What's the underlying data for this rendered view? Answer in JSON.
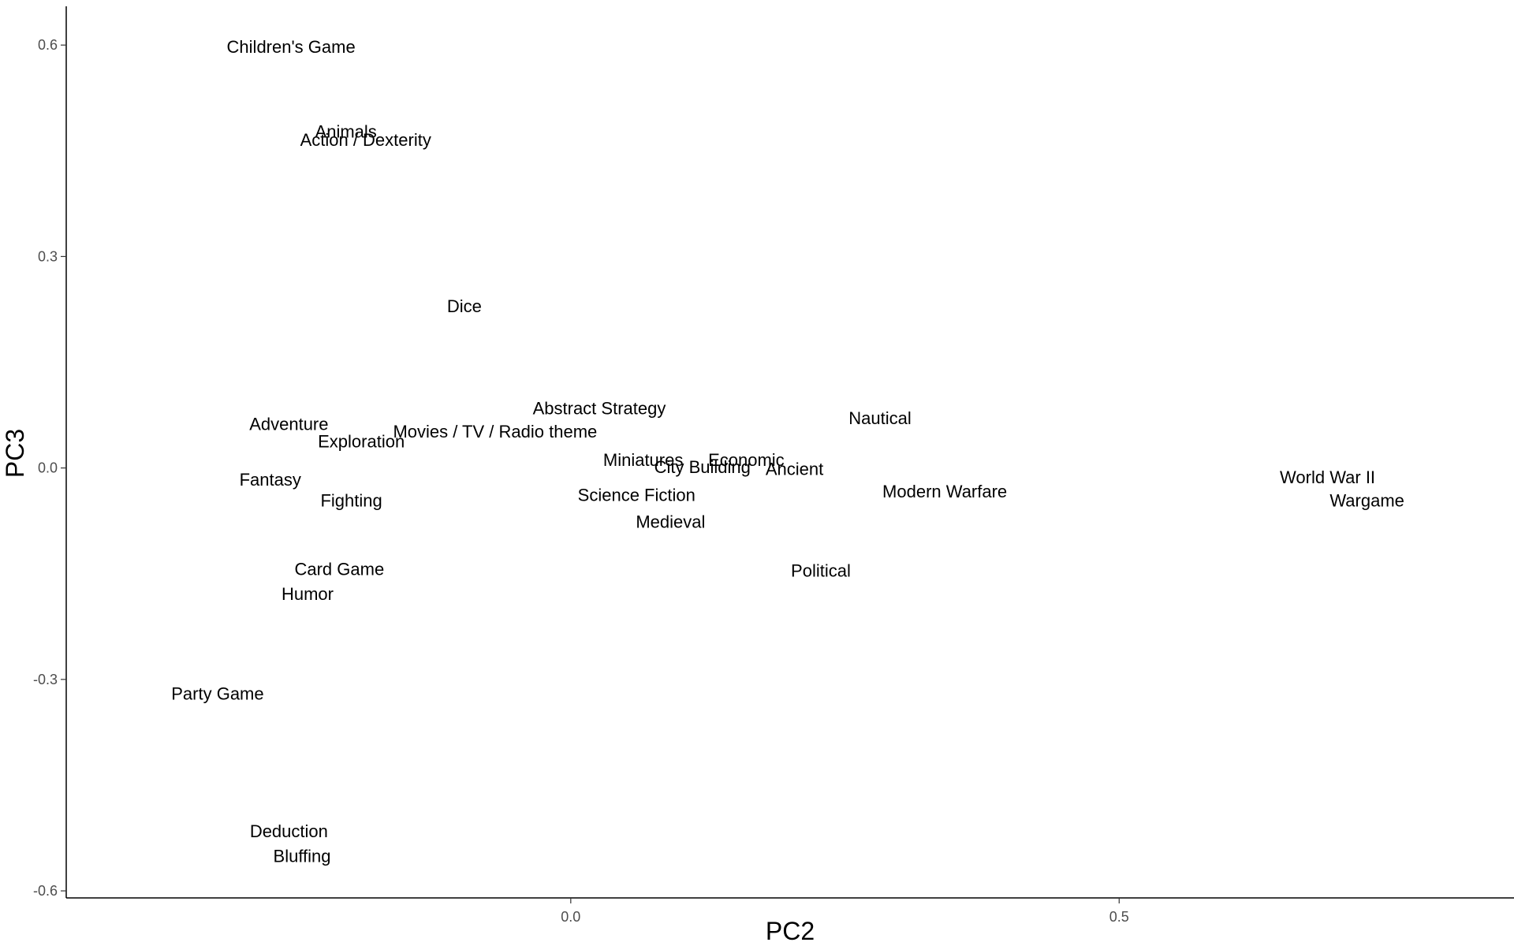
{
  "chart_data": {
    "type": "scatter",
    "xlabel": "PC2",
    "ylabel": "PC3",
    "xlim": [
      -0.46,
      0.86
    ],
    "ylim": [
      -0.61,
      0.655
    ],
    "xticks": [
      0.0,
      0.5
    ],
    "xtick_labels": [
      "0.0",
      "0.5"
    ],
    "yticks": [
      -0.6,
      -0.3,
      0.0,
      0.3,
      0.6
    ],
    "ytick_labels": [
      "-0.6",
      "-0.3",
      "0.0",
      "0.3",
      "0.6"
    ],
    "grid": false,
    "marker": "text-label",
    "points": [
      {
        "label": "Children's Game",
        "x": -0.255,
        "y": 0.598
      },
      {
        "label": "Animals",
        "x": -0.205,
        "y": 0.478
      },
      {
        "label": "Action / Dexterity",
        "x": -0.187,
        "y": 0.466
      },
      {
        "label": "Dice",
        "x": -0.097,
        "y": 0.23
      },
      {
        "label": "Abstract Strategy",
        "x": 0.026,
        "y": 0.085
      },
      {
        "label": "Nautical",
        "x": 0.282,
        "y": 0.071
      },
      {
        "label": "Adventure",
        "x": -0.257,
        "y": 0.063
      },
      {
        "label": "Movies / TV / Radio theme",
        "x": -0.069,
        "y": 0.052
      },
      {
        "label": "Exploration",
        "x": -0.191,
        "y": 0.038
      },
      {
        "label": "Miniatures",
        "x": 0.066,
        "y": 0.012
      },
      {
        "label": "Economic",
        "x": 0.16,
        "y": 0.012
      },
      {
        "label": "City Building",
        "x": 0.12,
        "y": 0.002
      },
      {
        "label": "Ancient",
        "x": 0.204,
        "y": -0.001
      },
      {
        "label": "World War II",
        "x": 0.69,
        "y": -0.013
      },
      {
        "label": "Fantasy",
        "x": -0.274,
        "y": -0.016
      },
      {
        "label": "Modern Warfare",
        "x": 0.341,
        "y": -0.033
      },
      {
        "label": "Science Fiction",
        "x": 0.06,
        "y": -0.038
      },
      {
        "label": "Wargame",
        "x": 0.726,
        "y": -0.046
      },
      {
        "label": "Fighting",
        "x": -0.2,
        "y": -0.046
      },
      {
        "label": "Medieval",
        "x": 0.091,
        "y": -0.076
      },
      {
        "label": "Card Game",
        "x": -0.211,
        "y": -0.143
      },
      {
        "label": "Political",
        "x": 0.228,
        "y": -0.145
      },
      {
        "label": "Humor",
        "x": -0.24,
        "y": -0.178
      },
      {
        "label": "Party Game",
        "x": -0.322,
        "y": -0.32
      },
      {
        "label": "Deduction",
        "x": -0.257,
        "y": -0.515
      },
      {
        "label": "Bluffing",
        "x": -0.245,
        "y": -0.55
      }
    ]
  }
}
